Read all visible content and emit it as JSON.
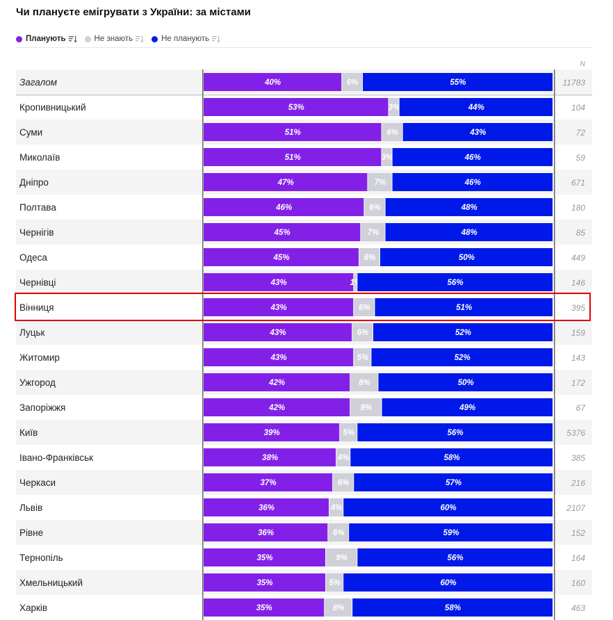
{
  "title": "Чи плануєте емігрувати з України: за містами",
  "legend": [
    {
      "label": "Планують",
      "color": "#8320e8",
      "icon": "sort-descending-icon",
      "active": true
    },
    {
      "label": "Не знають",
      "color": "#cfd0d8",
      "icon": "sort-descending-icon",
      "active": false
    },
    {
      "label": "Не планують",
      "color": "#0019e8",
      "icon": "sort-descending-icon",
      "active": false
    }
  ],
  "n_header": "N",
  "highlight_color": "#e00000",
  "chart_data": {
    "type": "bar",
    "orientation": "horizontal",
    "stacked": true,
    "percent": true,
    "series_names": [
      "Планують",
      "Не знають",
      "Не планують"
    ],
    "series_colors": [
      "#8320e8",
      "#cfd0d8",
      "#0019e8"
    ],
    "rows": [
      {
        "city": "Загалом",
        "plan": 40,
        "unknown": 6,
        "not_plan": 55,
        "n": 11783,
        "total": true
      },
      {
        "city": "Кропивницький",
        "plan": 53,
        "unknown": 3,
        "not_plan": 44,
        "n": 104
      },
      {
        "city": "Суми",
        "plan": 51,
        "unknown": 6,
        "not_plan": 43,
        "n": 72
      },
      {
        "city": "Миколаїв",
        "plan": 51,
        "unknown": 3,
        "not_plan": 46,
        "n": 59
      },
      {
        "city": "Дніпро",
        "plan": 47,
        "unknown": 7,
        "not_plan": 46,
        "n": 671
      },
      {
        "city": "Полтава",
        "plan": 46,
        "unknown": 6,
        "not_plan": 48,
        "n": 180
      },
      {
        "city": "Чернігів",
        "plan": 45,
        "unknown": 7,
        "not_plan": 48,
        "n": 85
      },
      {
        "city": "Одеса",
        "plan": 45,
        "unknown": 6,
        "not_plan": 50,
        "n": 449
      },
      {
        "city": "Чернівці",
        "plan": 43,
        "unknown": 1,
        "not_plan": 56,
        "n": 146
      },
      {
        "city": "Вінниця",
        "plan": 43,
        "unknown": 6,
        "not_plan": 51,
        "n": 395,
        "highlighted": true
      },
      {
        "city": "Луцьк",
        "plan": 43,
        "unknown": 6,
        "not_plan": 52,
        "n": 159
      },
      {
        "city": "Житомир",
        "plan": 43,
        "unknown": 5,
        "not_plan": 52,
        "n": 143
      },
      {
        "city": "Ужгород",
        "plan": 42,
        "unknown": 8,
        "not_plan": 50,
        "n": 172
      },
      {
        "city": "Запоріжжя",
        "plan": 42,
        "unknown": 9,
        "not_plan": 49,
        "n": 67
      },
      {
        "city": "Київ",
        "plan": 39,
        "unknown": 5,
        "not_plan": 56,
        "n": 5376
      },
      {
        "city": "Івано-Франківськ",
        "plan": 38,
        "unknown": 4,
        "not_plan": 58,
        "n": 385
      },
      {
        "city": "Черкаси",
        "plan": 37,
        "unknown": 6,
        "not_plan": 57,
        "n": 216
      },
      {
        "city": "Львів",
        "plan": 36,
        "unknown": 4,
        "not_plan": 60,
        "n": 2107
      },
      {
        "city": "Рівне",
        "plan": 36,
        "unknown": 6,
        "not_plan": 59,
        "n": 152
      },
      {
        "city": "Тернопіль",
        "plan": 35,
        "unknown": 9,
        "not_plan": 56,
        "n": 164
      },
      {
        "city": "Хмельницький",
        "plan": 35,
        "unknown": 5,
        "not_plan": 60,
        "n": 160
      },
      {
        "city": "Харків",
        "plan": 35,
        "unknown": 8,
        "not_plan": 58,
        "n": 463
      }
    ]
  }
}
